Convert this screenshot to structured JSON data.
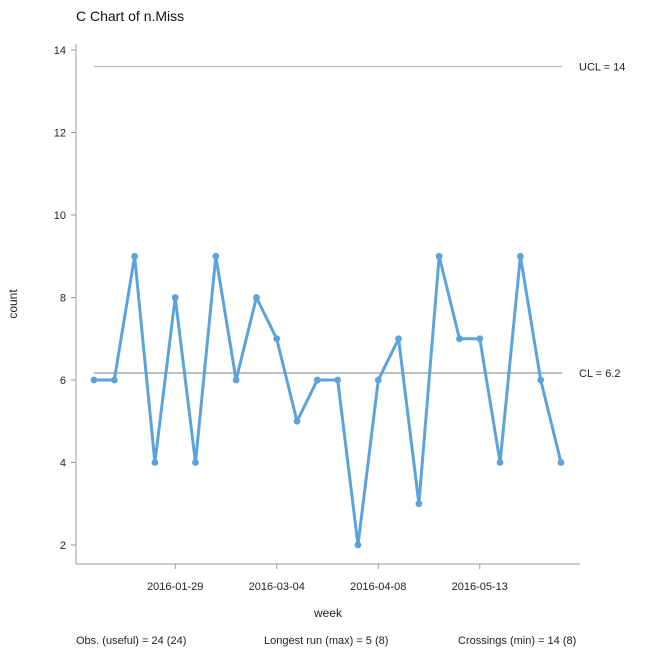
{
  "chart_data": {
    "type": "line",
    "title": "C Chart of n.Miss",
    "xlabel": "week",
    "ylabel": "count",
    "ylim": [
      1.5,
      14.3
    ],
    "y_ticks": [
      2,
      4,
      6,
      8,
      10,
      12,
      14
    ],
    "x_ticks": [
      {
        "index": 4,
        "label": "2016-01-29"
      },
      {
        "index": 9,
        "label": "2016-03-04"
      },
      {
        "index": 14,
        "label": "2016-04-08"
      },
      {
        "index": 19,
        "label": "2016-05-13"
      }
    ],
    "series": [
      {
        "name": "n.Miss",
        "color": "#5ba3d9",
        "values": [
          6,
          6,
          9,
          4,
          8,
          4,
          9,
          6,
          8,
          7,
          5,
          6,
          6,
          2,
          6,
          7,
          3,
          9,
          7,
          7,
          4,
          9,
          6,
          4
        ]
      }
    ],
    "reference_lines": [
      {
        "name": "UCL",
        "value": 13.6,
        "label": "UCL = 14",
        "color": "#bbbbbb"
      },
      {
        "name": "CL",
        "value": 6.17,
        "label": "CL = 6.2",
        "color": "#999999"
      }
    ]
  },
  "footer": {
    "obs": "Obs. (useful) = 24 (24)",
    "longest_run": "Longest run (max) = 5 (8)",
    "crossings": "Crossings (min) = 14 (8)"
  }
}
